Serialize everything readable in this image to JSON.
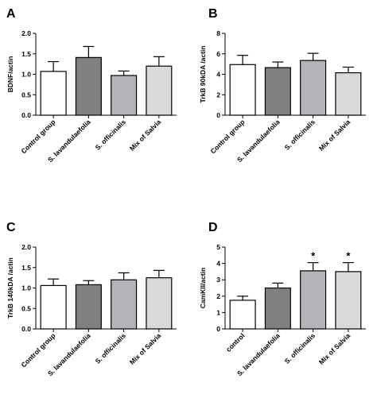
{
  "colors": {
    "control": "#ffffff",
    "lavandulaefolia": "#808080",
    "officinalis": "#b3b3b8",
    "mix": "#d9d9d9",
    "stroke": "#000000"
  },
  "chart_data": [
    {
      "type": "bar",
      "panel": "A",
      "ylabel": "BDNF/actin",
      "ylim": [
        0,
        2.0
      ],
      "yticks": [
        "0.0",
        "0.5",
        "1.0",
        "1.5",
        "2.0"
      ],
      "categories": [
        "Control group",
        "S. lavandulaefolia",
        "S. officinalis",
        "Mix of Salvia"
      ],
      "values": [
        1.07,
        1.41,
        0.97,
        1.2
      ],
      "errors": [
        0.24,
        0.27,
        0.11,
        0.23
      ],
      "significance": [
        "",
        "",
        "",
        ""
      ],
      "grid": false
    },
    {
      "type": "bar",
      "panel": "B",
      "ylabel": "TrkB 90kDA /actin",
      "ylim": [
        0,
        8
      ],
      "yticks": [
        "0",
        "2",
        "4",
        "6",
        "8"
      ],
      "categories": [
        "Control group",
        "S. lavandulaefolia",
        "S. officinalis",
        "Mix of Salvia"
      ],
      "values": [
        4.95,
        4.65,
        5.35,
        4.15
      ],
      "errors": [
        0.9,
        0.55,
        0.7,
        0.55
      ],
      "significance": [
        "",
        "",
        "",
        ""
      ],
      "grid": false
    },
    {
      "type": "bar",
      "panel": "C",
      "ylabel": "TrkB 140kDA /actin",
      "ylim": [
        0,
        2.0
      ],
      "yticks": [
        "0.0",
        "0.5",
        "1.0",
        "1.5",
        "2.0"
      ],
      "categories": [
        "Control group",
        "S. lavandulaefolia",
        "S. officinalis",
        "Mix of Salvia"
      ],
      "values": [
        1.06,
        1.08,
        1.2,
        1.25
      ],
      "errors": [
        0.16,
        0.1,
        0.17,
        0.18
      ],
      "significance": [
        "",
        "",
        "",
        ""
      ],
      "grid": false
    },
    {
      "type": "bar",
      "panel": "D",
      "ylabel": "CamKII/actin",
      "ylim": [
        0,
        5
      ],
      "yticks": [
        "0",
        "1",
        "2",
        "3",
        "4",
        "5"
      ],
      "categories": [
        "control",
        "S. lavandulaefolia",
        "S. officinalis",
        "Mix of Salvia"
      ],
      "values": [
        1.75,
        2.5,
        3.55,
        3.5
      ],
      "errors": [
        0.25,
        0.3,
        0.5,
        0.55
      ],
      "significance": [
        "",
        "",
        "*",
        "*"
      ],
      "grid": false
    }
  ]
}
